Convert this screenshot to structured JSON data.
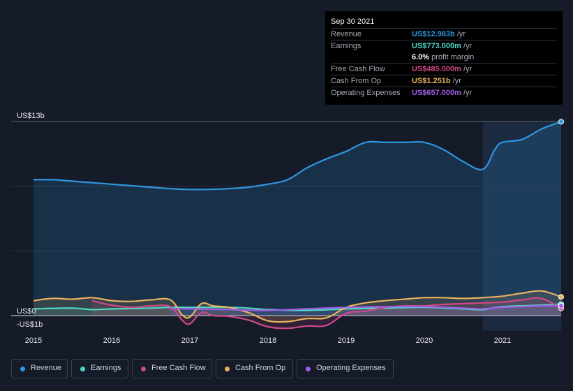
{
  "chart_data": {
    "type": "area",
    "x_ticks": [
      "2015",
      "2016",
      "2017",
      "2018",
      "2019",
      "2020",
      "2021"
    ],
    "y_ticks": [
      {
        "label": "US$13b",
        "value": 13
      },
      {
        "label": "US$0",
        "value": 0
      },
      {
        "label": "-US$1b",
        "value": -1
      }
    ],
    "ylim": [
      -1,
      13
    ],
    "xlim": [
      2015.0,
      2021.75
    ],
    "highlight_start": 2020.75,
    "series": [
      {
        "name": "Revenue",
        "color": "#2f96e0",
        "x": [
          2015.0,
          2015.25,
          2015.5,
          2015.75,
          2016.0,
          2016.25,
          2016.5,
          2016.75,
          2017.0,
          2017.25,
          2017.5,
          2017.75,
          2018.0,
          2018.25,
          2018.5,
          2018.75,
          2019.0,
          2019.25,
          2019.5,
          2019.75,
          2020.0,
          2020.25,
          2020.5,
          2020.75,
          2020.9,
          2021.0,
          2021.25,
          2021.5,
          2021.75
        ],
        "y": [
          9.1,
          9.1,
          9.0,
          8.9,
          8.8,
          8.7,
          8.6,
          8.5,
          8.45,
          8.45,
          8.5,
          8.6,
          8.8,
          9.1,
          9.9,
          10.5,
          11.0,
          11.6,
          11.6,
          11.6,
          11.6,
          11.1,
          10.3,
          9.8,
          11.1,
          11.6,
          11.8,
          12.5,
          12.983
        ]
      },
      {
        "name": "Earnings",
        "color": "#4fd8c4",
        "x": [
          2015.0,
          2015.5,
          2015.75,
          2016.0,
          2016.5,
          2016.75,
          2017.0,
          2017.5,
          2017.75,
          2018.0,
          2018.5,
          2019.0,
          2019.5,
          2020.0,
          2020.5,
          2020.75,
          2021.0,
          2021.5,
          2021.75
        ],
        "y": [
          0.45,
          0.5,
          0.4,
          0.45,
          0.5,
          0.55,
          0.55,
          0.55,
          0.5,
          0.4,
          0.35,
          0.45,
          0.5,
          0.55,
          0.45,
          0.4,
          0.6,
          0.7,
          0.773
        ]
      },
      {
        "name": "Free Cash Flow",
        "color": "#d0488a",
        "x": [
          2015.75,
          2016.0,
          2016.25,
          2016.5,
          2016.75,
          2016.9,
          2017.0,
          2017.15,
          2017.3,
          2017.5,
          2017.75,
          2018.0,
          2018.25,
          2018.5,
          2018.75,
          2019.0,
          2019.25,
          2019.5,
          2019.75,
          2020.0,
          2020.25,
          2020.5,
          2020.75,
          2021.0,
          2021.25,
          2021.5,
          2021.75
        ],
        "y": [
          1.0,
          0.7,
          0.55,
          0.65,
          0.6,
          -0.3,
          -0.55,
          0.2,
          0.0,
          -0.05,
          -0.3,
          -0.75,
          -0.85,
          -0.7,
          -0.65,
          0.15,
          0.3,
          0.55,
          0.65,
          0.65,
          0.75,
          0.8,
          0.85,
          0.9,
          1.05,
          1.15,
          0.485
        ]
      },
      {
        "name": "Cash From Op",
        "color": "#e8b160",
        "x": [
          2015.0,
          2015.25,
          2015.5,
          2015.75,
          2016.0,
          2016.25,
          2016.5,
          2016.75,
          2016.9,
          2017.0,
          2017.15,
          2017.3,
          2017.5,
          2017.75,
          2018.0,
          2018.25,
          2018.5,
          2018.75,
          2019.0,
          2019.25,
          2019.5,
          2019.75,
          2020.0,
          2020.25,
          2020.5,
          2020.75,
          2021.0,
          2021.25,
          2021.5,
          2021.75
        ],
        "y": [
          1.0,
          1.15,
          1.1,
          1.2,
          1.0,
          0.95,
          1.05,
          1.05,
          0.05,
          -0.1,
          0.8,
          0.65,
          0.55,
          0.2,
          -0.35,
          -0.4,
          -0.2,
          -0.15,
          0.55,
          0.85,
          1.0,
          1.1,
          1.2,
          1.2,
          1.15,
          1.2,
          1.3,
          1.5,
          1.65,
          1.251
        ]
      },
      {
        "name": "Operating Expenses",
        "color": "#a15de8",
        "x": [
          2016.75,
          2017.0,
          2017.5,
          2018.0,
          2018.5,
          2019.0,
          2019.5,
          2020.0,
          2020.5,
          2020.75,
          2021.0,
          2021.5,
          2021.75
        ],
        "y": [
          0.45,
          0.45,
          0.4,
          0.35,
          0.45,
          0.55,
          0.6,
          0.6,
          0.5,
          0.45,
          0.55,
          0.65,
          0.657
        ]
      }
    ]
  },
  "tooltip": {
    "date": "Sep 30 2021",
    "rows": [
      {
        "label": "Revenue",
        "value": "US$12.983b",
        "unit": " /yr",
        "color": "#2f96e0"
      },
      {
        "label": "Earnings",
        "value": "US$773.000m",
        "unit": " /yr",
        "color": "#4fd8c4"
      },
      {
        "label": "Free Cash Flow",
        "value": "US$485.000m",
        "unit": " /yr",
        "color": "#d0488a"
      },
      {
        "label": "Cash From Op",
        "value": "US$1.251b",
        "unit": " /yr",
        "color": "#e8b160"
      },
      {
        "label": "Operating Expenses",
        "value": "US$657.000m",
        "unit": " /yr",
        "color": "#a15de8"
      }
    ],
    "margin_value": "6.0%",
    "margin_label": " profit margin"
  },
  "legend": [
    {
      "label": "Revenue",
      "color": "#2f96e0"
    },
    {
      "label": "Earnings",
      "color": "#4fd8c4"
    },
    {
      "label": "Free Cash Flow",
      "color": "#d0488a"
    },
    {
      "label": "Cash From Op",
      "color": "#e8b160"
    },
    {
      "label": "Operating Expenses",
      "color": "#a15de8"
    }
  ]
}
